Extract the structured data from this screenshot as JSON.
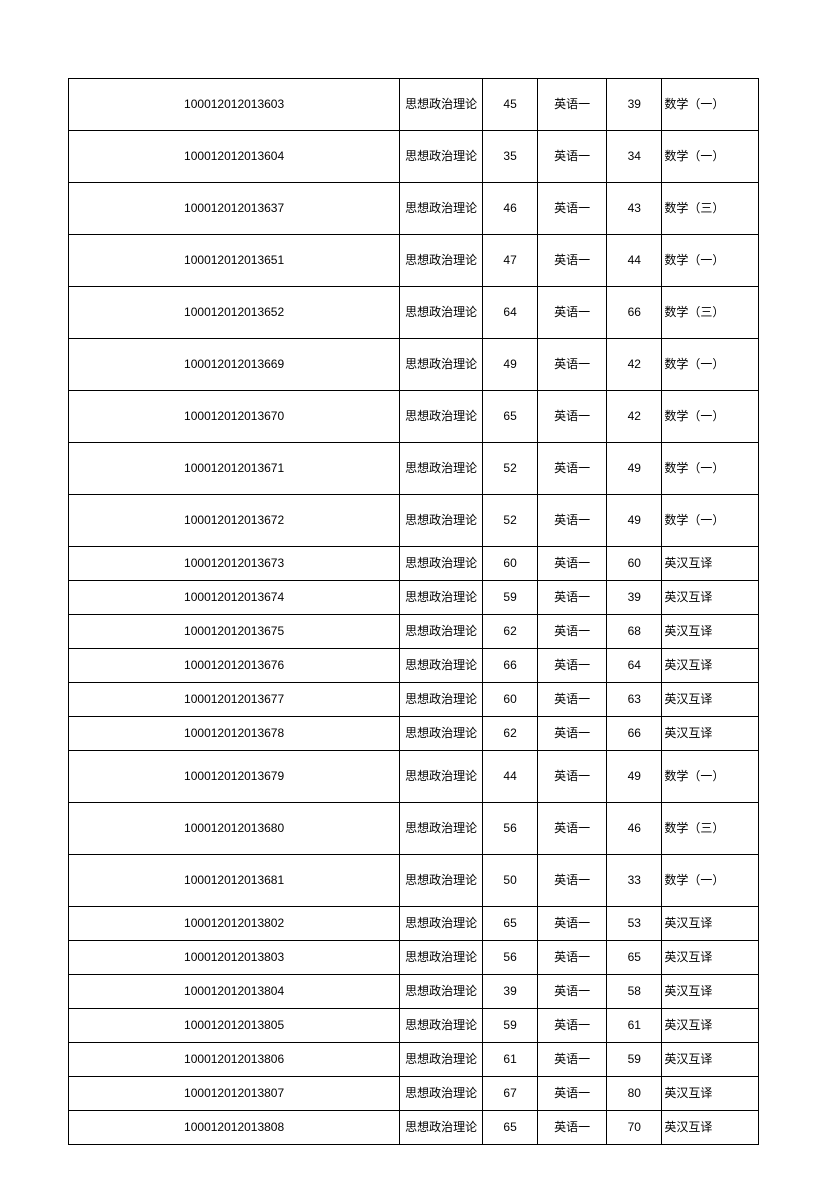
{
  "table": {
    "columns": [
      "id",
      "subject1",
      "score1",
      "subject2",
      "score2",
      "subject3"
    ],
    "col_classes": [
      "col-id",
      "col-sub1",
      "col-score1",
      "col-sub2",
      "col-score2",
      "col-sub3"
    ],
    "border_color": "#000000",
    "background_color": "#ffffff",
    "font_size": 12,
    "rows": [
      {
        "h": "tall",
        "id": "100012012013603",
        "subject1": "思想政治理论",
        "score1": "45",
        "subject2": "英语一",
        "score2": "39",
        "subject3": "数学（一）"
      },
      {
        "h": "tall",
        "id": "100012012013604",
        "subject1": "思想政治理论",
        "score1": "35",
        "subject2": "英语一",
        "score2": "34",
        "subject3": "数学（一）"
      },
      {
        "h": "tall",
        "id": "100012012013637",
        "subject1": "思想政治理论",
        "score1": "46",
        "subject2": "英语一",
        "score2": "43",
        "subject3": "数学（三）"
      },
      {
        "h": "tall",
        "id": "100012012013651",
        "subject1": "思想政治理论",
        "score1": "47",
        "subject2": "英语一",
        "score2": "44",
        "subject3": "数学（一）"
      },
      {
        "h": "tall",
        "id": "100012012013652",
        "subject1": "思想政治理论",
        "score1": "64",
        "subject2": "英语一",
        "score2": "66",
        "subject3": "数学（三）"
      },
      {
        "h": "tall",
        "id": "100012012013669",
        "subject1": "思想政治理论",
        "score1": "49",
        "subject2": "英语一",
        "score2": "42",
        "subject3": "数学（一）"
      },
      {
        "h": "tall",
        "id": "100012012013670",
        "subject1": "思想政治理论",
        "score1": "65",
        "subject2": "英语一",
        "score2": "42",
        "subject3": "数学（一）"
      },
      {
        "h": "tall",
        "id": "100012012013671",
        "subject1": "思想政治理论",
        "score1": "52",
        "subject2": "英语一",
        "score2": "49",
        "subject3": "数学（一）"
      },
      {
        "h": "tall",
        "id": "100012012013672",
        "subject1": "思想政治理论",
        "score1": "52",
        "subject2": "英语一",
        "score2": "49",
        "subject3": "数学（一）"
      },
      {
        "h": "short",
        "id": "100012012013673",
        "subject1": "思想政治理论",
        "score1": "60",
        "subject2": "英语一",
        "score2": "60",
        "subject3": "英汉互译"
      },
      {
        "h": "short",
        "id": "100012012013674",
        "subject1": "思想政治理论",
        "score1": "59",
        "subject2": "英语一",
        "score2": "39",
        "subject3": "英汉互译"
      },
      {
        "h": "short",
        "id": "100012012013675",
        "subject1": "思想政治理论",
        "score1": "62",
        "subject2": "英语一",
        "score2": "68",
        "subject3": "英汉互译"
      },
      {
        "h": "short",
        "id": "100012012013676",
        "subject1": "思想政治理论",
        "score1": "66",
        "subject2": "英语一",
        "score2": "64",
        "subject3": "英汉互译"
      },
      {
        "h": "short",
        "id": "100012012013677",
        "subject1": "思想政治理论",
        "score1": "60",
        "subject2": "英语一",
        "score2": "63",
        "subject3": "英汉互译"
      },
      {
        "h": "short",
        "id": "100012012013678",
        "subject1": "思想政治理论",
        "score1": "62",
        "subject2": "英语一",
        "score2": "66",
        "subject3": "英汉互译"
      },
      {
        "h": "tall",
        "id": "100012012013679",
        "subject1": "思想政治理论",
        "score1": "44",
        "subject2": "英语一",
        "score2": "49",
        "subject3": "数学（一）"
      },
      {
        "h": "tall",
        "id": "100012012013680",
        "subject1": "思想政治理论",
        "score1": "56",
        "subject2": "英语一",
        "score2": "46",
        "subject3": "数学（三）"
      },
      {
        "h": "tall",
        "id": "100012012013681",
        "subject1": "思想政治理论",
        "score1": "50",
        "subject2": "英语一",
        "score2": "33",
        "subject3": "数学（一）"
      },
      {
        "h": "short",
        "id": "100012012013802",
        "subject1": "思想政治理论",
        "score1": "65",
        "subject2": "英语一",
        "score2": "53",
        "subject3": "英汉互译"
      },
      {
        "h": "short",
        "id": "100012012013803",
        "subject1": "思想政治理论",
        "score1": "56",
        "subject2": "英语一",
        "score2": "65",
        "subject3": "英汉互译"
      },
      {
        "h": "short",
        "id": "100012012013804",
        "subject1": "思想政治理论",
        "score1": "39",
        "subject2": "英语一",
        "score2": "58",
        "subject3": "英汉互译"
      },
      {
        "h": "short",
        "id": "100012012013805",
        "subject1": "思想政治理论",
        "score1": "59",
        "subject2": "英语一",
        "score2": "61",
        "subject3": "英汉互译"
      },
      {
        "h": "short",
        "id": "100012012013806",
        "subject1": "思想政治理论",
        "score1": "61",
        "subject2": "英语一",
        "score2": "59",
        "subject3": "英汉互译"
      },
      {
        "h": "short",
        "id": "100012012013807",
        "subject1": "思想政治理论",
        "score1": "67",
        "subject2": "英语一",
        "score2": "80",
        "subject3": "英汉互译"
      },
      {
        "h": "short",
        "id": "100012012013808",
        "subject1": "思想政治理论",
        "score1": "65",
        "subject2": "英语一",
        "score2": "70",
        "subject3": "英汉互译"
      }
    ]
  }
}
